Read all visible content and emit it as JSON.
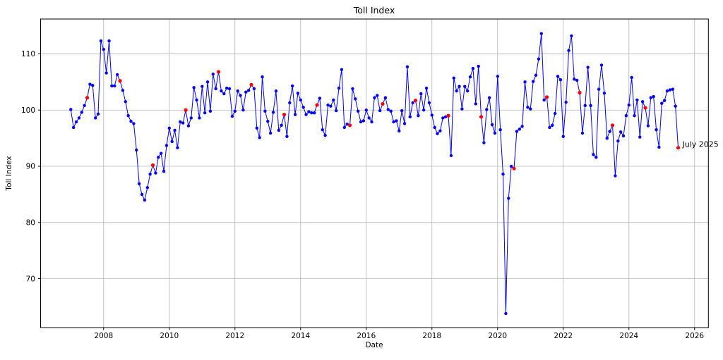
{
  "chart_data": {
    "type": "line",
    "title": "Toll Index",
    "xlabel": "Date",
    "ylabel": "Toll Index",
    "grid": true,
    "legend": "none",
    "frequency": "monthly",
    "x_start": "2007-01",
    "x_end": "2025-07",
    "xticks": [
      2008,
      2010,
      2012,
      2014,
      2016,
      2018,
      2020,
      2022,
      2024,
      2026
    ],
    "yticks": [
      70,
      80,
      90,
      100,
      110
    ],
    "xlim": [
      2006.08,
      2026.42
    ],
    "ylim": [
      61.3,
      116.2
    ],
    "line_color": "#0000ff",
    "marker_color": "#0000ff",
    "july_marker_color": "#ff0000",
    "grid_color": "#b4b4b4",
    "spine_color": "#000000",
    "annotation_text": "July 2025",
    "annotation_color": "#ff0000",
    "annotation_anchor": "last point (2025-07)",
    "highlight_rule": "every July data point is drawn as a red marker",
    "values": [
      100.1,
      96.9,
      97.9,
      98.6,
      99.6,
      100.8,
      102.2,
      104.6,
      104.4,
      98.6,
      99.3,
      112.3,
      110.8,
      106.6,
      112.3,
      104.3,
      104.3,
      106.3,
      105.2,
      103.5,
      101.5,
      99.0,
      98.0,
      97.6,
      92.9,
      86.9,
      85.0,
      84.0,
      86.2,
      88.6,
      90.2,
      88.8,
      91.6,
      92.3,
      89.1,
      93.7,
      96.8,
      94.4,
      96.4,
      93.3,
      97.9,
      97.7,
      100.0,
      97.2,
      98.6,
      104.0,
      101.8,
      98.6,
      104.2,
      99.5,
      105.0,
      99.8,
      106.4,
      103.8,
      106.8,
      103.4,
      102.9,
      103.9,
      103.8,
      98.9,
      99.8,
      103.4,
      102.6,
      100.0,
      103.2,
      103.5,
      104.5,
      103.8,
      96.8,
      95.1,
      105.9,
      99.8,
      98.0,
      95.9,
      99.6,
      103.4,
      96.4,
      97.3,
      99.2,
      95.3,
      101.3,
      104.3,
      99.2,
      103.0,
      101.8,
      100.5,
      99.2,
      99.7,
      99.5,
      99.5,
      100.9,
      102.1,
      96.5,
      95.5,
      100.9,
      100.7,
      101.8,
      99.9,
      103.9,
      107.2,
      96.9,
      97.5,
      97.3,
      103.8,
      102.0,
      99.8,
      97.9,
      98.1,
      100.0,
      98.6,
      97.9,
      102.2,
      102.6,
      99.9,
      101.1,
      102.2,
      100.1,
      99.8,
      97.9,
      98.1,
      96.3,
      99.9,
      97.6,
      107.7,
      98.8,
      101.3,
      101.7,
      99.0,
      102.9,
      100.0,
      103.9,
      101.3,
      99.1,
      96.9,
      95.8,
      96.3,
      98.6,
      98.8,
      99.0,
      91.9,
      105.7,
      103.4,
      104.2,
      100.2,
      104.2,
      103.4,
      105.9,
      107.4,
      101.1,
      107.8,
      98.8,
      94.2,
      100.1,
      102.2,
      97.4,
      95.9,
      106.0,
      96.5,
      88.6,
      63.8,
      84.3,
      90.0,
      89.6,
      96.2,
      96.6,
      97.1,
      105.0,
      100.5,
      100.2,
      105.1,
      106.2,
      109.1,
      113.6,
      101.8,
      102.3,
      96.9,
      97.3,
      99.4,
      106.0,
      105.4,
      95.3,
      101.4,
      110.6,
      113.2,
      105.5,
      105.3,
      103.1,
      95.9,
      100.8,
      107.6,
      100.8,
      92.1,
      91.6,
      103.7,
      108.0,
      103.0,
      95.0,
      96.2,
      97.3,
      88.3,
      94.5,
      96.1,
      95.4,
      99.0,
      100.9,
      105.8,
      99.0,
      101.8,
      95.2,
      101.5,
      100.4,
      97.2,
      102.2,
      102.4,
      96.5,
      93.4,
      101.2,
      101.7,
      103.4,
      103.6,
      103.7,
      100.7,
      93.3
    ]
  }
}
